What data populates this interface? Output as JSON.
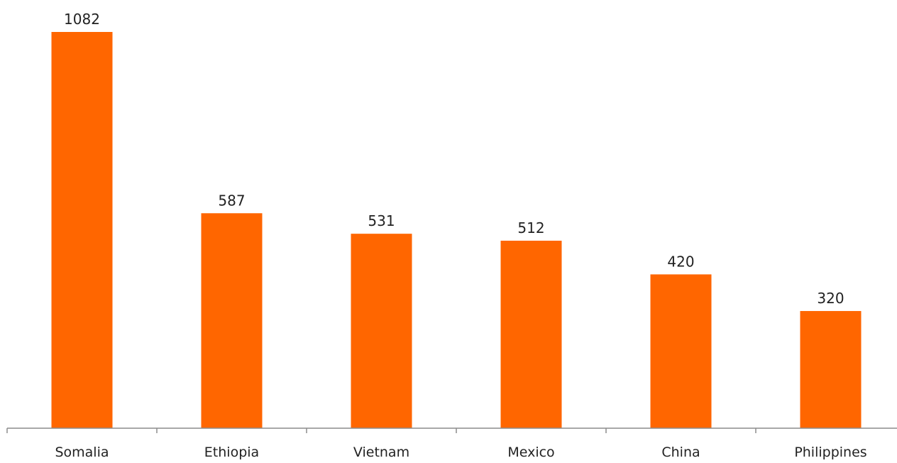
{
  "chart_data": {
    "type": "bar",
    "title": "",
    "xlabel": "",
    "ylabel": "",
    "categories": [
      "Somalia",
      "Ethiopia",
      "Vietnam",
      "Mexico",
      "China",
      "Philippines"
    ],
    "values": [
      1082,
      587,
      531,
      512,
      420,
      320
    ],
    "ylim": [
      0,
      1100
    ],
    "grid": false,
    "legend": "none",
    "bar_color": "#FF6600",
    "axis_color": "#8C8C8C",
    "text_color": "#222222"
  }
}
